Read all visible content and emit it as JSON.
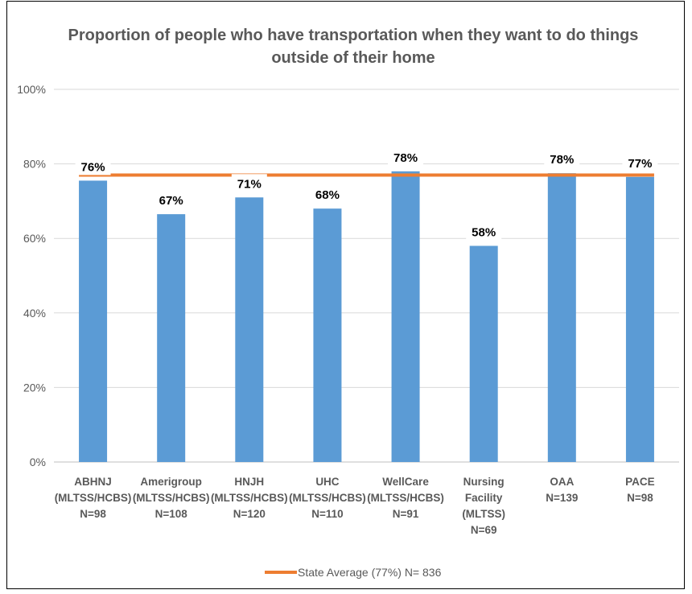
{
  "chart_data": {
    "type": "bar",
    "title_lines": [
      "Proportion of people who have transportation when they want to do things",
      "outside of their home"
    ],
    "categories": [
      [
        "ABHNJ",
        "(MLTSS/HCBS)",
        "N=98"
      ],
      [
        "Amerigroup",
        "(MLTSS/HCBS)",
        "N=108"
      ],
      [
        "HNJH",
        "(MLTSS/HCBS)",
        "N=120"
      ],
      [
        "UHC",
        "(MLTSS/HCBS)",
        "N=110"
      ],
      [
        "WellCare",
        "(MLTSS/HCBS)",
        "N=91"
      ],
      [
        "Nursing",
        "Facility",
        "(MLTSS)",
        "N=69"
      ],
      [
        "OAA",
        "N=139"
      ],
      [
        "PACE",
        "N=98"
      ]
    ],
    "values": [
      75.5,
      66.5,
      71,
      68,
      78,
      58,
      77.5,
      76.5
    ],
    "data_labels": [
      "76%",
      "67%",
      "71%",
      "68%",
      "78%",
      "58%",
      "78%",
      "77%"
    ],
    "reference_line": {
      "name": "State Average (77%) N= 836",
      "value": 77
    },
    "ylim": [
      0,
      100
    ],
    "yticks": [
      0,
      20,
      40,
      60,
      80,
      100
    ],
    "ytick_labels": [
      "0%",
      "20%",
      "40%",
      "60%",
      "80%",
      "100%"
    ],
    "grid": true,
    "legend_position": "bottom",
    "colors": {
      "bar": "#5B9BD5",
      "line": "#ED7D31",
      "grid": "#D9D9D9",
      "text": "#595959"
    }
  }
}
